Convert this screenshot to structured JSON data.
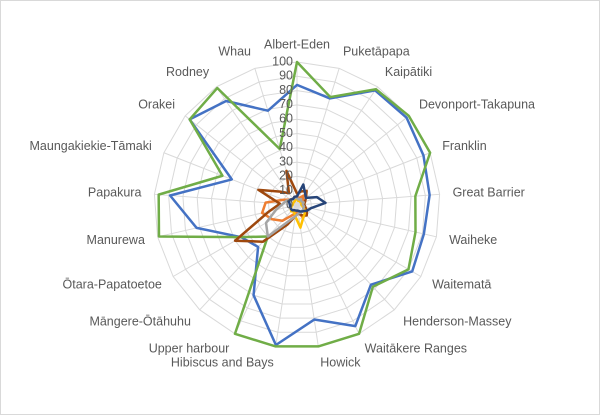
{
  "chart_data": {
    "type": "radar",
    "categories": [
      "Albert-Eden",
      "Puketāpapa",
      "Kaipātiki",
      "Devonport-Takapuna",
      "Franklin",
      "Great Barrier",
      "Waiheke",
      "Waitematā",
      "Henderson-Massey",
      "Waitākere Ranges",
      "Howick",
      "Hibiscus and Bays",
      "Upper harbour",
      "Māngere-Ōtāhuhu",
      "Ōtara-Papatoetoe",
      "Manurewa",
      "Papakura",
      "Maungakiekie-Tāmaki",
      "Orakei",
      "Rodney",
      "Whau"
    ],
    "ylim": [
      0,
      100
    ],
    "yticks": [
      0,
      10,
      20,
      30,
      40,
      50,
      60,
      70,
      80,
      90,
      100
    ],
    "grid": true,
    "series": [
      {
        "color": "#4472c4",
        "values": [
          84,
          78,
          97,
          98,
          95,
          93,
          91,
          93,
          76,
          94,
          81,
          99,
          70,
          40,
          45,
          72,
          89,
          49,
          96,
          88,
          69
        ]
      },
      {
        "color": "#70ad47",
        "values": [
          100,
          79,
          98,
          100,
          100,
          83,
          85,
          90,
          78,
          100,
          100,
          100,
          100,
          30,
          45,
          99,
          97,
          56,
          96,
          99,
          41
        ]
      },
      {
        "color": "#ed7d31",
        "values": [
          6,
          5,
          8,
          5,
          6,
          4,
          5,
          6,
          8,
          10,
          5,
          6,
          8,
          15,
          20,
          25,
          22,
          10,
          6,
          5,
          6
        ]
      },
      {
        "color": "#9e480e",
        "values": [
          8,
          10,
          12,
          8,
          6,
          5,
          6,
          8,
          10,
          8,
          6,
          8,
          15,
          35,
          50,
          20,
          12,
          29,
          15,
          10,
          25
        ]
      },
      {
        "color": "#ffc000",
        "values": [
          4,
          3,
          4,
          3,
          4,
          3,
          4,
          6,
          8,
          10,
          16,
          8,
          5,
          6,
          5,
          4,
          3,
          3,
          3,
          3,
          4
        ]
      },
      {
        "color": "#a5a5a5",
        "values": [
          5,
          4,
          5,
          4,
          5,
          4,
          5,
          5,
          6,
          6,
          6,
          8,
          12,
          30,
          25,
          15,
          10,
          8,
          6,
          5,
          5
        ]
      },
      {
        "color": "#264478",
        "values": [
          6,
          15,
          10,
          8,
          15,
          20,
          10,
          8,
          6,
          5,
          4,
          4,
          4,
          5,
          5,
          5,
          5,
          6,
          6,
          5,
          6
        ]
      }
    ]
  }
}
